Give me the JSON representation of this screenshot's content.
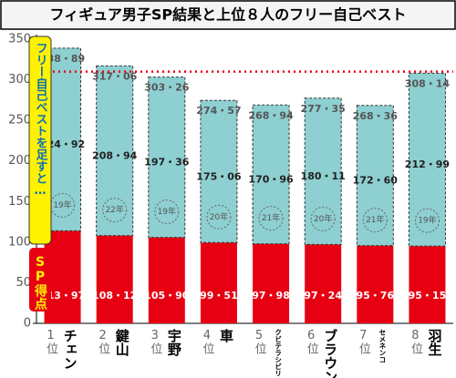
{
  "chart_data": {
    "type": "stacked-bar",
    "title": "フィギュア男子SP結果と上位８人のフリー自己ベスト",
    "ranks": [
      "1位",
      "2位",
      "3位",
      "4位",
      "5位",
      "6位",
      "7位",
      "8位"
    ],
    "categories": [
      "チェン",
      "鍵山",
      "宇野",
      "車",
      "クビテラシビリ",
      "ブラウン",
      "セメネンコ",
      "羽生"
    ],
    "series": [
      {
        "name": "SP得点",
        "color": "#e60012",
        "values": [
          113.97,
          108.12,
          105.9,
          99.51,
          97.98,
          97.24,
          95.76,
          95.15
        ],
        "value_labels": [
          "113・97",
          "108・12",
          "105・90",
          "99・51",
          "97・98",
          "97・24",
          "95・76",
          "95・15"
        ]
      },
      {
        "name": "フリー自己ベストを足すと…",
        "color": "#8ecfd1",
        "values": [
          224.92,
          208.94,
          197.36,
          175.06,
          170.96,
          180.11,
          172.6,
          212.99
        ],
        "value_labels": [
          "224・92",
          "208・94",
          "197・36",
          "175・06",
          "170・96",
          "180・11",
          "172・60",
          "212・99"
        ],
        "years": [
          "19年",
          "22年",
          "19年",
          "20年",
          "21年",
          "20年",
          "21年",
          "19年"
        ]
      }
    ],
    "totals": [
      338.89,
      317.06,
      303.26,
      274.57,
      268.94,
      277.35,
      268.36,
      308.14
    ],
    "total_labels": [
      "338・89",
      "317・06",
      "303・26",
      "274・57",
      "268・94",
      "277・35",
      "268・36",
      "308・14"
    ],
    "reference_line": {
      "value": 310,
      "color": "#e60012"
    },
    "ylim": [
      0,
      350
    ],
    "yticks": [
      0,
      50,
      100,
      150,
      200,
      250,
      300,
      350
    ],
    "grid": false
  }
}
